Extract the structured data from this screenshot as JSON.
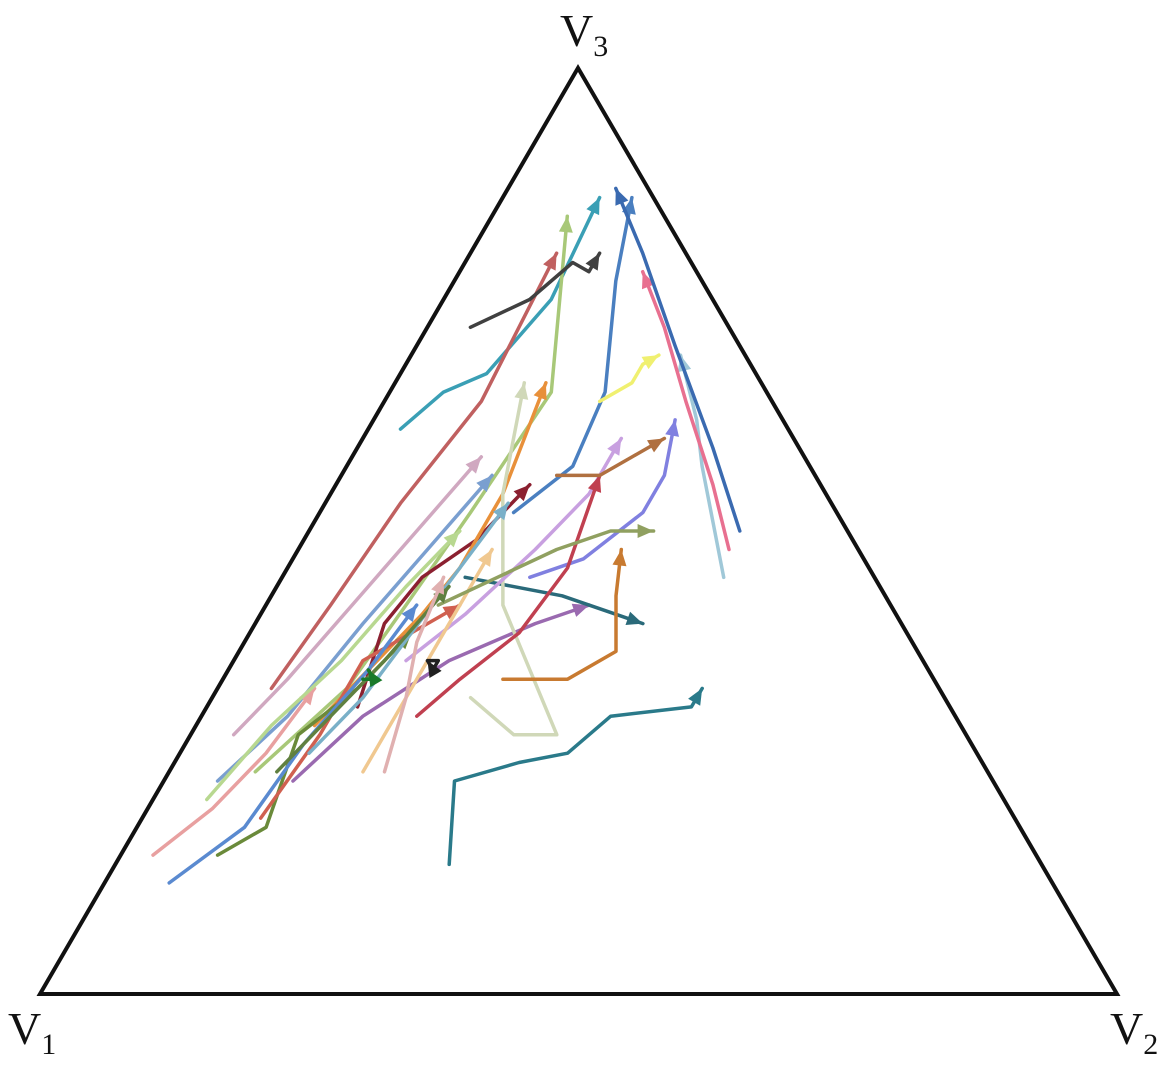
{
  "chart_data": {
    "type": "ternary-trajectories",
    "title": "",
    "vertices": [
      {
        "id": "v1",
        "main": "V",
        "sub": "1"
      },
      {
        "id": "v2",
        "main": "V",
        "sub": "2"
      },
      {
        "id": "v3",
        "main": "V",
        "sub": "3"
      }
    ],
    "coordinate_order": [
      "V1",
      "V2",
      "V3"
    ],
    "grid": false,
    "legend": "none",
    "trajectories": [
      {
        "color": "#3a9fb5",
        "points": [
          [
            0.36,
            0.03,
            0.61
          ],
          [
            0.3,
            0.05,
            0.65
          ],
          [
            0.25,
            0.08,
            0.67
          ],
          [
            0.15,
            0.1,
            0.75
          ],
          [
            0.05,
            0.09,
            0.86
          ]
        ]
      },
      {
        "color": "#c06060",
        "points": [
          [
            0.62,
            0.05,
            0.33
          ],
          [
            0.52,
            0.06,
            0.42
          ],
          [
            0.4,
            0.07,
            0.53
          ],
          [
            0.27,
            0.09,
            0.64
          ],
          [
            0.12,
            0.08,
            0.8
          ]
        ]
      },
      {
        "color": "#a8c878",
        "points": [
          [
            0.68,
            0.08,
            0.24
          ],
          [
            0.55,
            0.12,
            0.33
          ],
          [
            0.45,
            0.13,
            0.42
          ],
          [
            0.34,
            0.14,
            0.52
          ],
          [
            0.2,
            0.15,
            0.65
          ],
          [
            0.09,
            0.07,
            0.84
          ]
        ]
      },
      {
        "color": "#4a7fc0",
        "points": [
          [
            0.3,
            0.18,
            0.52
          ],
          [
            0.22,
            0.21,
            0.57
          ],
          [
            0.15,
            0.2,
            0.65
          ],
          [
            0.08,
            0.15,
            0.77
          ],
          [
            0.02,
            0.12,
            0.86
          ]
        ]
      },
      {
        "color": "#8b2030",
        "points": [
          [
            0.55,
            0.14,
            0.31
          ],
          [
            0.48,
            0.12,
            0.4
          ],
          [
            0.42,
            0.13,
            0.45
          ],
          [
            0.35,
            0.16,
            0.49
          ],
          [
            0.27,
            0.18,
            0.55
          ]
        ]
      },
      {
        "color": "#e8903a",
        "points": [
          [
            0.6,
            0.11,
            0.29
          ],
          [
            0.52,
            0.13,
            0.35
          ],
          [
            0.44,
            0.15,
            0.41
          ],
          [
            0.38,
            0.16,
            0.46
          ],
          [
            0.3,
            0.16,
            0.54
          ],
          [
            0.2,
            0.14,
            0.66
          ]
        ]
      },
      {
        "color": "#7a9fd0",
        "points": [
          [
            0.72,
            0.05,
            0.23
          ],
          [
            0.62,
            0.08,
            0.3
          ],
          [
            0.5,
            0.1,
            0.4
          ],
          [
            0.4,
            0.12,
            0.48
          ],
          [
            0.3,
            0.14,
            0.56
          ]
        ]
      },
      {
        "color": "#6a8a3a",
        "points": [
          [
            0.76,
            0.09,
            0.15
          ],
          [
            0.7,
            0.12,
            0.18
          ],
          [
            0.62,
            0.1,
            0.28
          ],
          [
            0.54,
            0.13,
            0.33
          ],
          [
            0.46,
            0.15,
            0.39
          ]
        ]
      },
      {
        "color": "#9a6ab0",
        "points": [
          [
            0.65,
            0.12,
            0.23
          ],
          [
            0.55,
            0.15,
            0.3
          ],
          [
            0.44,
            0.2,
            0.36
          ],
          [
            0.34,
            0.26,
            0.4
          ],
          [
            0.28,
            0.3,
            0.42
          ]
        ]
      },
      {
        "color": "#e8a0a0",
        "points": [
          [
            0.82,
            0.03,
            0.15
          ],
          [
            0.74,
            0.06,
            0.2
          ],
          [
            0.66,
            0.08,
            0.26
          ],
          [
            0.58,
            0.09,
            0.33
          ]
        ]
      },
      {
        "color": "#2a7a8a",
        "points": [
          [
            0.55,
            0.31,
            0.14
          ],
          [
            0.5,
            0.27,
            0.23
          ],
          [
            0.43,
            0.32,
            0.25
          ],
          [
            0.38,
            0.36,
            0.26
          ],
          [
            0.32,
            0.38,
            0.3
          ],
          [
            0.24,
            0.45,
            0.31
          ],
          [
            0.22,
            0.45,
            0.33
          ]
        ]
      },
      {
        "color": "#2a6a7a",
        "points": [
          [
            0.38,
            0.17,
            0.45
          ],
          [
            0.3,
            0.27,
            0.43
          ],
          [
            0.26,
            0.33,
            0.41
          ],
          [
            0.24,
            0.36,
            0.4
          ]
        ]
      },
      {
        "color": "#d0d8b8",
        "points": [
          [
            0.44,
            0.24,
            0.32
          ],
          [
            0.42,
            0.3,
            0.28
          ],
          [
            0.38,
            0.34,
            0.28
          ],
          [
            0.36,
            0.22,
            0.42
          ],
          [
            0.3,
            0.16,
            0.54
          ],
          [
            0.22,
            0.12,
            0.66
          ]
        ]
      },
      {
        "color": "#c87a30",
        "points": [
          [
            0.4,
            0.26,
            0.34
          ],
          [
            0.34,
            0.32,
            0.34
          ],
          [
            0.28,
            0.35,
            0.37
          ],
          [
            0.25,
            0.32,
            0.43
          ],
          [
            0.22,
            0.3,
            0.48
          ]
        ]
      },
      {
        "color": "#8080e0",
        "points": [
          [
            0.32,
            0.23,
            0.45
          ],
          [
            0.26,
            0.27,
            0.47
          ],
          [
            0.18,
            0.3,
            0.52
          ],
          [
            0.14,
            0.3,
            0.56
          ],
          [
            0.1,
            0.28,
            0.62
          ]
        ]
      },
      {
        "color": "#a0c8d8",
        "points": [
          [
            0.14,
            0.41,
            0.45
          ],
          [
            0.12,
            0.37,
            0.51
          ],
          [
            0.1,
            0.33,
            0.57
          ],
          [
            0.08,
            0.3,
            0.62
          ],
          [
            0.06,
            0.25,
            0.69
          ]
        ]
      },
      {
        "color": "#404040",
        "points": [
          [
            0.24,
            0.04,
            0.72
          ],
          [
            0.17,
            0.08,
            0.75
          ],
          [
            0.11,
            0.1,
            0.79
          ],
          [
            0.1,
            0.12,
            0.78
          ],
          [
            0.08,
            0.12,
            0.8
          ]
        ]
      },
      {
        "color": "#c8a0e0",
        "points": [
          [
            0.48,
            0.16,
            0.36
          ],
          [
            0.4,
            0.19,
            0.41
          ],
          [
            0.3,
            0.22,
            0.48
          ],
          [
            0.22,
            0.24,
            0.54
          ],
          [
            0.16,
            0.24,
            0.6
          ]
        ]
      },
      {
        "color": "#e87090",
        "points": [
          [
            0.12,
            0.4,
            0.48
          ],
          [
            0.1,
            0.35,
            0.55
          ],
          [
            0.08,
            0.28,
            0.64
          ],
          [
            0.06,
            0.22,
            0.72
          ],
          [
            0.05,
            0.17,
            0.78
          ]
        ]
      },
      {
        "color": "#3a6ab0",
        "points": [
          [
            0.1,
            0.4,
            0.5
          ],
          [
            0.08,
            0.33,
            0.59
          ],
          [
            0.06,
            0.24,
            0.7
          ],
          [
            0.04,
            0.16,
            0.8
          ],
          [
            0.03,
            0.1,
            0.87
          ]
        ]
      },
      {
        "color": "#b8d890",
        "points": [
          [
            0.74,
            0.05,
            0.21
          ],
          [
            0.64,
            0.07,
            0.29
          ],
          [
            0.54,
            0.1,
            0.36
          ],
          [
            0.44,
            0.12,
            0.44
          ],
          [
            0.36,
            0.14,
            0.5
          ]
        ]
      },
      {
        "color": "#d06050",
        "points": [
          [
            0.7,
            0.11,
            0.19
          ],
          [
            0.6,
            0.12,
            0.28
          ],
          [
            0.52,
            0.12,
            0.36
          ],
          [
            0.46,
            0.15,
            0.39
          ],
          [
            0.4,
            0.18,
            0.42
          ]
        ]
      },
      {
        "color": "#f0c890",
        "points": [
          [
            0.58,
            0.18,
            0.24
          ],
          [
            0.5,
            0.18,
            0.32
          ],
          [
            0.42,
            0.18,
            0.4
          ],
          [
            0.34,
            0.18,
            0.48
          ]
        ]
      },
      {
        "color": "#7ab0c8",
        "points": [
          [
            0.62,
            0.12,
            0.26
          ],
          [
            0.54,
            0.14,
            0.32
          ],
          [
            0.46,
            0.15,
            0.39
          ],
          [
            0.38,
            0.16,
            0.46
          ],
          [
            0.3,
            0.17,
            0.53
          ]
        ]
      },
      {
        "color": "#c04050",
        "points": [
          [
            0.5,
            0.2,
            0.3
          ],
          [
            0.44,
            0.22,
            0.34
          ],
          [
            0.36,
            0.25,
            0.39
          ],
          [
            0.28,
            0.26,
            0.46
          ],
          [
            0.2,
            0.24,
            0.56
          ]
        ]
      },
      {
        "color": "#90a060",
        "points": [
          [
            0.42,
            0.16,
            0.42
          ],
          [
            0.35,
            0.2,
            0.45
          ],
          [
            0.28,
            0.24,
            0.48
          ],
          [
            0.22,
            0.28,
            0.5
          ],
          [
            0.18,
            0.32,
            0.5
          ]
        ]
      },
      {
        "color": "#f0f070",
        "points": [
          [
            0.16,
            0.2,
            0.64
          ],
          [
            0.12,
            0.22,
            0.66
          ],
          [
            0.1,
            0.22,
            0.68
          ],
          [
            0.08,
            0.23,
            0.69
          ]
        ]
      },
      {
        "color": "#5a8ad0",
        "points": [
          [
            0.82,
            0.06,
            0.12
          ],
          [
            0.72,
            0.1,
            0.18
          ],
          [
            0.62,
            0.11,
            0.27
          ],
          [
            0.52,
            0.13,
            0.35
          ],
          [
            0.44,
            0.14,
            0.42
          ]
        ]
      },
      {
        "color": "#b07040",
        "points": [
          [
            0.24,
            0.2,
            0.56
          ],
          [
            0.2,
            0.24,
            0.56
          ],
          [
            0.16,
            0.26,
            0.58
          ],
          [
            0.12,
            0.28,
            0.6
          ]
        ]
      },
      {
        "color": "#d0a8c0",
        "points": [
          [
            0.68,
            0.04,
            0.28
          ],
          [
            0.6,
            0.06,
            0.34
          ],
          [
            0.5,
            0.08,
            0.42
          ],
          [
            0.4,
            0.1,
            0.5
          ],
          [
            0.3,
            0.12,
            0.58
          ]
        ]
      },
      {
        "color": "#608040",
        "points": [
          [
            0.66,
            0.1,
            0.24
          ],
          [
            0.58,
            0.12,
            0.3
          ],
          [
            0.5,
            0.14,
            0.36
          ],
          [
            0.4,
            0.16,
            0.44
          ]
        ]
      },
      {
        "color": "#e0b0b0",
        "points": [
          [
            0.56,
            0.2,
            0.24
          ],
          [
            0.5,
            0.18,
            0.32
          ],
          [
            0.46,
            0.16,
            0.38
          ],
          [
            0.4,
            0.15,
            0.45
          ]
        ]
      },
      {
        "color": "#1a7a2a",
        "points": [
          [
            0.53,
            0.13,
            0.34
          ],
          [
            0.52,
            0.14,
            0.34
          ],
          [
            0.52,
            0.13,
            0.35
          ]
        ]
      },
      {
        "color": "#202020",
        "points": [
          [
            0.46,
            0.18,
            0.36
          ],
          [
            0.45,
            0.19,
            0.36
          ],
          [
            0.46,
            0.19,
            0.35
          ],
          [
            0.46,
            0.18,
            0.36
          ]
        ]
      }
    ]
  }
}
